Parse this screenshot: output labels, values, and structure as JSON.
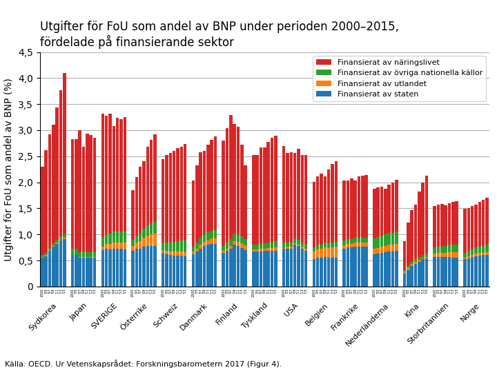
{
  "chart_data": {
    "type": "bar",
    "stacked": true,
    "title": "Utgifter för FoU som andel av BNP under perioden 2000–2015,\nfördelade på finansierande sektor",
    "y_label": "Utgifter för FoU som andel av BNP (%)",
    "source": "Källa: OECD. Ur Vetenskapsrådet: Forskningsbarometern 2017 (Figur 4).",
    "categories": [
      "Sydkorea",
      "Japan",
      "SVERIGE",
      "Österrike",
      "Schweiz",
      "Danmark",
      "Finland",
      "Tyskland",
      "USA",
      "Belgien",
      "Frankrike",
      "Nederländerna",
      "Kina",
      "Storbritannien",
      "Norge"
    ],
    "subcategories": [
      "2000",
      "'05",
      "'07",
      "'09",
      "'11",
      "'13",
      "'15"
    ],
    "ylim": [
      0,
      4.5
    ],
    "yticks": [
      0,
      {
        "value": 0.5,
        "label": "0,5"
      },
      {
        "value": 1.0,
        "label": "1,0"
      },
      {
        "value": 1.5,
        "label": "1,5"
      },
      {
        "value": 2.0,
        "label": "2,0"
      },
      {
        "value": 2.5,
        "label": "2,5"
      },
      {
        "value": 3.0,
        "label": "3,0"
      },
      {
        "value": 3.5,
        "label": "3,5"
      },
      {
        "value": 4.0,
        "label": "4,0"
      },
      {
        "value": 4.5,
        "label": "4,5"
      }
    ],
    "grid": true,
    "legend": "upper right",
    "series": [
      {
        "name": "Finansierat av staten",
        "values": [
          [
            0.55,
            0.58,
            0.68,
            0.76,
            0.82,
            0.88,
            0.91
          ],
          [
            0.6,
            0.6,
            0.55,
            0.55,
            0.55,
            0.55,
            0.55
          ],
          [
            0.7,
            0.72,
            0.71,
            0.73,
            0.73,
            0.72,
            0.71
          ],
          [
            0.68,
            0.72,
            0.72,
            0.76,
            0.78,
            0.78,
            0.78
          ],
          [
            0.64,
            0.62,
            0.6,
            0.59,
            0.59,
            0.59,
            0.58
          ],
          [
            0.62,
            0.67,
            0.73,
            0.78,
            0.8,
            0.82,
            0.82
          ],
          [
            0.64,
            0.68,
            0.72,
            0.8,
            0.78,
            0.74,
            0.7
          ],
          [
            0.67,
            0.67,
            0.67,
            0.68,
            0.68,
            0.68,
            0.68
          ],
          [
            0.72,
            0.73,
            0.73,
            0.8,
            0.78,
            0.72,
            0.68
          ],
          [
            0.52,
            0.55,
            0.55,
            0.57,
            0.55,
            0.55,
            0.55
          ],
          [
            0.73,
            0.75,
            0.75,
            0.77,
            0.77,
            0.77,
            0.77
          ],
          [
            0.62,
            0.63,
            0.64,
            0.66,
            0.67,
            0.67,
            0.68
          ],
          [
            0.25,
            0.32,
            0.39,
            0.44,
            0.48,
            0.52,
            0.54
          ],
          [
            0.57,
            0.57,
            0.56,
            0.56,
            0.56,
            0.55,
            0.55
          ],
          [
            0.52,
            0.54,
            0.56,
            0.58,
            0.59,
            0.6,
            0.6
          ]
        ]
      },
      {
        "name": "Finansierat av utlandet",
        "values": [
          [
            0.02,
            0.02,
            0.02,
            0.02,
            0.02,
            0.02,
            0.02
          ],
          [
            0.01,
            0.01,
            0.01,
            0.01,
            0.01,
            0.01,
            0.01
          ],
          [
            0.07,
            0.1,
            0.11,
            0.12,
            0.12,
            0.12,
            0.13
          ],
          [
            0.1,
            0.13,
            0.15,
            0.17,
            0.2,
            0.22,
            0.24
          ],
          [
            0.05,
            0.06,
            0.07,
            0.08,
            0.08,
            0.08,
            0.08
          ],
          [
            0.05,
            0.06,
            0.07,
            0.08,
            0.09,
            0.1,
            0.1
          ],
          [
            0.04,
            0.05,
            0.06,
            0.07,
            0.08,
            0.09,
            0.09
          ],
          [
            0.04,
            0.04,
            0.05,
            0.05,
            0.06,
            0.06,
            0.07
          ],
          [
            0.02,
            0.03,
            0.03,
            0.03,
            0.03,
            0.04,
            0.04
          ],
          [
            0.15,
            0.16,
            0.17,
            0.18,
            0.19,
            0.2,
            0.21
          ],
          [
            0.06,
            0.07,
            0.07,
            0.07,
            0.07,
            0.07,
            0.07
          ],
          [
            0.1,
            0.11,
            0.12,
            0.12,
            0.13,
            0.13,
            0.14
          ],
          [
            0.04,
            0.05,
            0.04,
            0.03,
            0.03,
            0.02,
            0.02
          ],
          [
            0.06,
            0.07,
            0.08,
            0.09,
            0.1,
            0.11,
            0.11
          ],
          [
            0.03,
            0.04,
            0.04,
            0.05,
            0.05,
            0.05,
            0.06
          ]
        ]
      },
      {
        "name": "Finansierat av övriga nationella källor",
        "values": [
          [
            0.04,
            0.04,
            0.04,
            0.05,
            0.06,
            0.06,
            0.07
          ],
          [
            0.12,
            0.11,
            0.1,
            0.1,
            0.1,
            0.1,
            0.1
          ],
          [
            0.18,
            0.18,
            0.19,
            0.2,
            0.2,
            0.21,
            0.22
          ],
          [
            0.12,
            0.13,
            0.15,
            0.18,
            0.2,
            0.22,
            0.22
          ],
          [
            0.16,
            0.17,
            0.18,
            0.19,
            0.2,
            0.21,
            0.22
          ],
          [
            0.1,
            0.11,
            0.13,
            0.14,
            0.15,
            0.15,
            0.16
          ],
          [
            0.1,
            0.12,
            0.13,
            0.14,
            0.14,
            0.13,
            0.12
          ],
          [
            0.1,
            0.1,
            0.1,
            0.1,
            0.11,
            0.11,
            0.12
          ],
          [
            0.1,
            0.09,
            0.09,
            0.09,
            0.09,
            0.09,
            0.09
          ],
          [
            0.08,
            0.08,
            0.08,
            0.09,
            0.09,
            0.1,
            0.1
          ],
          [
            0.09,
            0.09,
            0.09,
            0.09,
            0.09,
            0.09,
            0.09
          ],
          [
            0.2,
            0.21,
            0.22,
            0.22,
            0.23,
            0.23,
            0.24
          ],
          [
            0.03,
            0.04,
            0.05,
            0.05,
            0.06,
            0.06,
            0.07
          ],
          [
            0.12,
            0.13,
            0.13,
            0.13,
            0.14,
            0.14,
            0.14
          ],
          [
            0.1,
            0.11,
            0.11,
            0.12,
            0.13,
            0.13,
            0.14
          ]
        ]
      },
      {
        "name": "Finansierat av näringslivet",
        "values": [
          [
            1.69,
            1.98,
            2.18,
            2.27,
            2.54,
            2.81,
            3.1
          ],
          [
            2.1,
            2.11,
            2.34,
            2.02,
            2.27,
            2.25,
            2.2
          ],
          [
            2.37,
            2.28,
            2.31,
            2.03,
            2.19,
            2.16,
            2.19
          ],
          [
            0.95,
            1.12,
            1.28,
            1.29,
            1.5,
            1.6,
            1.68
          ],
          [
            1.6,
            1.68,
            1.72,
            1.74,
            1.78,
            1.8,
            1.85
          ],
          [
            1.26,
            1.48,
            1.65,
            1.6,
            1.68,
            1.75,
            1.8
          ],
          [
            2.02,
            2.19,
            2.38,
            2.11,
            2.07,
            1.76,
            1.41
          ],
          [
            1.72,
            1.72,
            1.85,
            1.84,
            1.92,
            2.0,
            2.02
          ],
          [
            1.85,
            1.72,
            1.73,
            1.65,
            1.74,
            1.68,
            1.72
          ],
          [
            1.26,
            1.32,
            1.37,
            1.27,
            1.42,
            1.5,
            1.55
          ],
          [
            1.15,
            1.13,
            1.16,
            1.1,
            1.18,
            1.2,
            1.21
          ],
          [
            0.95,
            0.95,
            0.93,
            0.88,
            0.92,
            0.96,
            0.99
          ],
          [
            0.55,
            0.82,
            0.99,
            1.05,
            1.25,
            1.4,
            1.5
          ],
          [
            0.8,
            0.8,
            0.82,
            0.78,
            0.8,
            0.82,
            0.84
          ],
          [
            0.84,
            0.82,
            0.83,
            0.82,
            0.85,
            0.88,
            0.9
          ]
        ]
      }
    ]
  }
}
